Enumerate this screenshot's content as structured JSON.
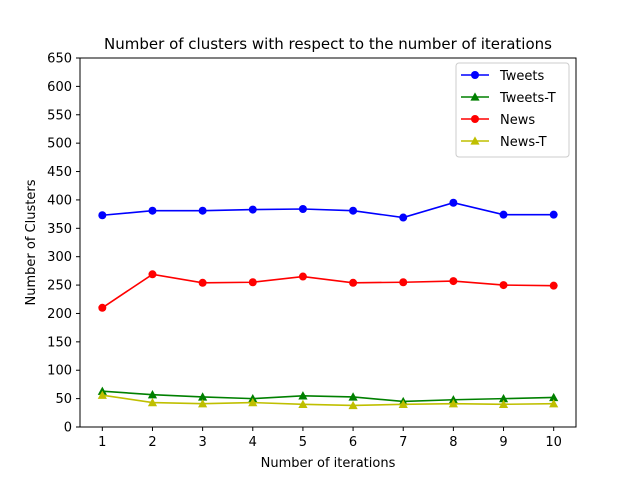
{
  "chart_data": {
    "type": "line",
    "title": "Number of clusters with respect to the number of iterations",
    "xlabel": "Number of iterations",
    "ylabel": "Number of Clusters",
    "x": [
      1,
      2,
      3,
      4,
      5,
      6,
      7,
      8,
      9,
      10
    ],
    "xticks": [
      "1",
      "2",
      "3",
      "4",
      "5",
      "6",
      "7",
      "8",
      "9",
      "10"
    ],
    "ylim": [
      0,
      650
    ],
    "yticks": [
      "0",
      "50",
      "100",
      "150",
      "200",
      "250",
      "300",
      "350",
      "400",
      "450",
      "500",
      "550",
      "600",
      "650"
    ],
    "grid": false,
    "legend_position": "top-right",
    "series": [
      {
        "name": "Tweets",
        "color": "#0000ff",
        "marker": "circle",
        "values": [
          373,
          381,
          381,
          383,
          384,
          381,
          369,
          395,
          374,
          374
        ]
      },
      {
        "name": "Tweets-T",
        "color": "#008000",
        "marker": "triangle",
        "values": [
          63,
          57,
          53,
          50,
          55,
          53,
          45,
          48,
          50,
          52
        ]
      },
      {
        "name": "News",
        "color": "#ff0000",
        "marker": "circle",
        "values": [
          210,
          269,
          254,
          255,
          265,
          254,
          255,
          257,
          250,
          249
        ]
      },
      {
        "name": "News-T",
        "color": "#bfbf00",
        "marker": "triangle",
        "values": [
          56,
          43,
          41,
          43,
          40,
          38,
          40,
          41,
          40,
          41
        ]
      }
    ]
  }
}
